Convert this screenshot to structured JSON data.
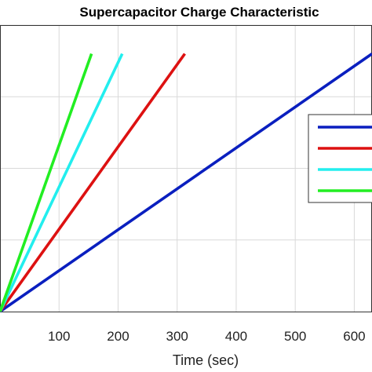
{
  "chart_data": {
    "type": "line",
    "title": "Supercapacitor Charge Characteristic",
    "xlabel": "Time (sec)",
    "ylabel": "",
    "xlim": [
      0,
      630
    ],
    "ylim": [
      0,
      4
    ],
    "xticks": [
      100,
      200,
      300,
      400,
      500,
      600
    ],
    "yticks": [
      1,
      2,
      3,
      4
    ],
    "grid": true,
    "legend": {
      "placement": "right",
      "entries": [
        "",
        "",
        "",
        ""
      ]
    },
    "series": [
      {
        "color": "#0a1fbf",
        "x": [
          0,
          630
        ],
        "y": [
          0,
          3.6
        ]
      },
      {
        "color": "#dd1111",
        "x": [
          0,
          313
        ],
        "y": [
          0,
          3.6
        ]
      },
      {
        "color": "#22eeee",
        "x": [
          0,
          207
        ],
        "y": [
          0,
          3.6
        ]
      },
      {
        "color": "#22ee22",
        "x": [
          0,
          155
        ],
        "y": [
          0,
          3.6
        ]
      }
    ]
  }
}
